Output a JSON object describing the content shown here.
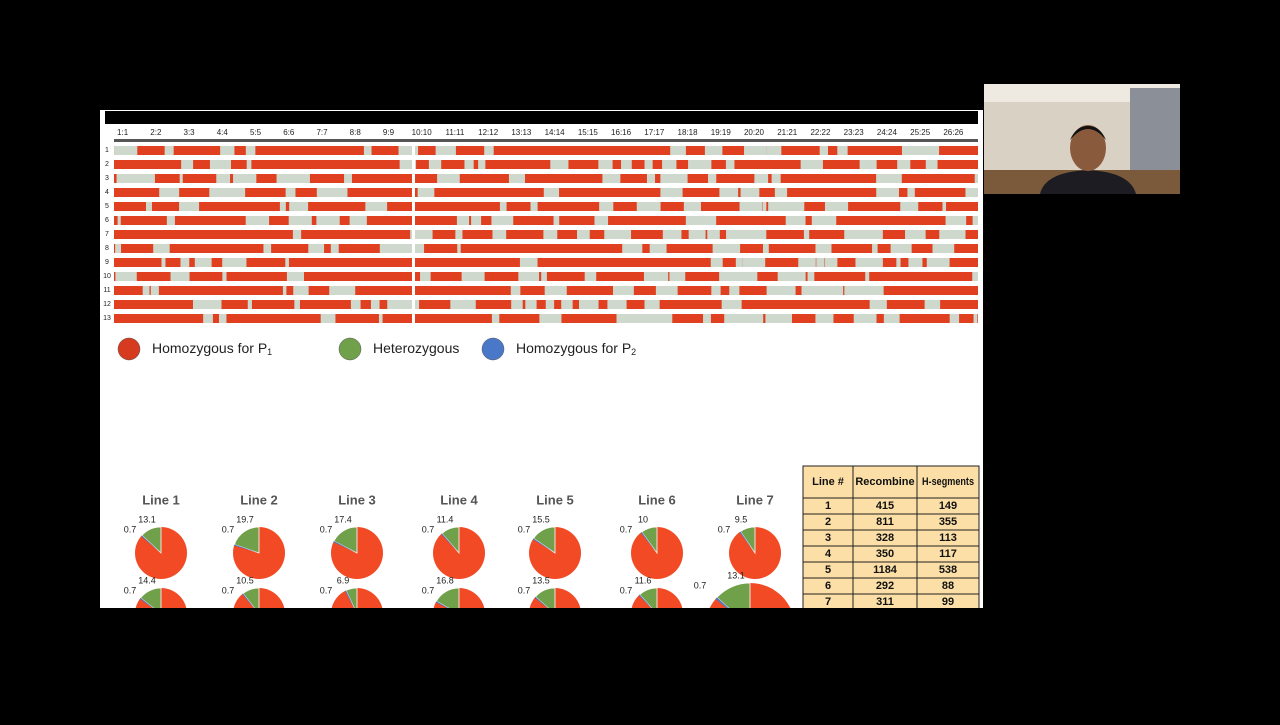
{
  "genome": {
    "chromosomes": [
      "1:1",
      "2:2",
      "3:3",
      "4:4",
      "5:5",
      "6:6",
      "7:7",
      "8:8",
      "9:9",
      "10:10",
      "11:11",
      "12:12",
      "13:13",
      "14:14",
      "15:15",
      "16:16",
      "17:17",
      "18:18",
      "19:19",
      "20:20",
      "21:21",
      "22:22",
      "23:23",
      "24:24",
      "25:25",
      "26:26"
    ],
    "rows": [
      "1",
      "2",
      "3",
      "4",
      "5",
      "6",
      "7",
      "8",
      "9",
      "10",
      "11",
      "12",
      "13"
    ]
  },
  "legend": [
    {
      "text": "Homozygous for P",
      "sub": "1",
      "color": "#d63a1f"
    },
    {
      "text": "Heterozygous",
      "color": "#70a04a"
    },
    {
      "text": "Homozygous for P",
      "sub": "2",
      "color": "#4a78c8"
    }
  ],
  "pies": [
    {
      "title": "Line 1",
      "het": 13.1,
      "p2": 0.7
    },
    {
      "title": "Line 2",
      "het": 19.7,
      "p2": 0.7
    },
    {
      "title": "Line 3",
      "het": 17.4,
      "p2": 0.7
    },
    {
      "title": "Line 4",
      "het": 11.4,
      "p2": 0.7
    },
    {
      "title": "Line 5",
      "het": 15.5,
      "p2": 0.7
    },
    {
      "title": "Line 6",
      "het": 10,
      "p2": 0.7
    },
    {
      "title": "Line 7",
      "het": 9.5,
      "p2": 0.7
    }
  ],
  "pies_lower": [
    {
      "het": 14.4,
      "p2": 0.7
    },
    {
      "het": 10.5,
      "p2": 0.7
    },
    {
      "het": 6.9,
      "p2": 0.7
    },
    {
      "het": 16.8,
      "p2": 0.7
    },
    {
      "het": 13.5,
      "p2": 0.7
    },
    {
      "het": 11.6,
      "p2": 0.7
    },
    {
      "het": 13.1,
      "p2": 0.7
    }
  ],
  "table": {
    "header": [
      "Line #",
      "Recombine",
      "H-segments"
    ],
    "rows": [
      [
        "1",
        "415",
        "149"
      ],
      [
        "2",
        "811",
        "355"
      ],
      [
        "3",
        "328",
        "113"
      ],
      [
        "4",
        "350",
        "117"
      ],
      [
        "5",
        "1184",
        "538"
      ],
      [
        "6",
        "292",
        "88"
      ],
      [
        "7",
        "311",
        "99"
      ]
    ]
  }
}
